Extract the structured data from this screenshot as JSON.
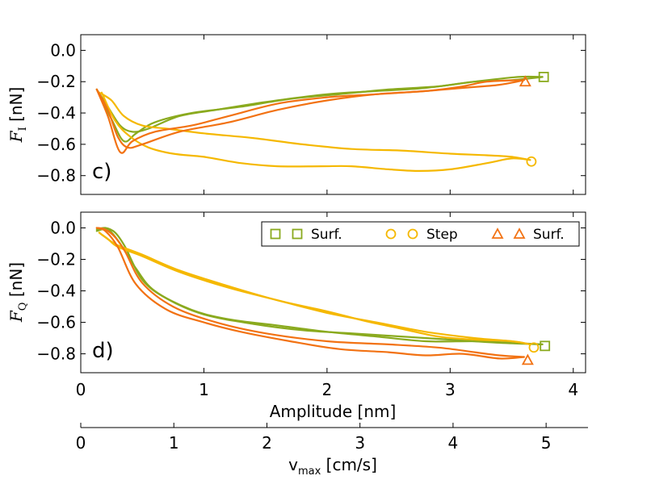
{
  "chart_data": [
    {
      "type": "line",
      "panel_label": "c)",
      "ylabel_main": "F",
      "ylabel_sub": "I",
      "ylabel_unit": "[nN]",
      "ylim": [
        -0.92,
        0.1
      ],
      "yticks": [
        0.0,
        -0.2,
        -0.4,
        -0.6,
        -0.8
      ],
      "ytick_labels": [
        "0.0",
        "−0.2",
        "−0.4",
        "−0.6",
        "−0.8"
      ],
      "xlim": [
        0,
        4.1
      ],
      "series": [
        {
          "name": "Surf. (green) outbound",
          "color": "#8aaa1e",
          "x": [
            0.13,
            0.22,
            0.32,
            0.42,
            0.55,
            0.8,
            1.1,
            1.5,
            2.0,
            2.4,
            2.8,
            3.2,
            3.55,
            3.75
          ],
          "y": [
            -0.25,
            -0.36,
            -0.48,
            -0.52,
            -0.5,
            -0.42,
            -0.38,
            -0.33,
            -0.28,
            -0.26,
            -0.24,
            -0.2,
            -0.17,
            -0.17
          ]
        },
        {
          "name": "Surf. (green) return",
          "color": "#8aaa1e",
          "x": [
            3.75,
            3.5,
            3.2,
            2.9,
            2.5,
            2.1,
            1.7,
            1.3,
            0.9,
            0.6,
            0.45,
            0.35,
            0.25,
            0.13
          ],
          "y": [
            -0.17,
            -0.19,
            -0.2,
            -0.23,
            -0.25,
            -0.28,
            -0.31,
            -0.36,
            -0.4,
            -0.46,
            -0.53,
            -0.58,
            -0.44,
            -0.25
          ]
        },
        {
          "name": "Step (yellow) outbound",
          "color": "#f5b800",
          "x": [
            0.15,
            0.25,
            0.35,
            0.5,
            0.7,
            1.0,
            1.4,
            1.8,
            2.2,
            2.6,
            3.0,
            3.3,
            3.5,
            3.65
          ],
          "y": [
            -0.27,
            -0.32,
            -0.42,
            -0.48,
            -0.5,
            -0.53,
            -0.56,
            -0.6,
            -0.63,
            -0.64,
            -0.66,
            -0.67,
            -0.68,
            -0.7
          ]
        },
        {
          "name": "Step (yellow) return",
          "color": "#f5b800",
          "x": [
            3.65,
            3.5,
            3.3,
            3.0,
            2.75,
            2.5,
            2.2,
            1.95,
            1.6,
            1.3,
            1.0,
            0.75,
            0.55,
            0.4,
            0.28,
            0.17
          ],
          "y": [
            -0.7,
            -0.69,
            -0.72,
            -0.76,
            -0.77,
            -0.76,
            -0.74,
            -0.74,
            -0.74,
            -0.72,
            -0.68,
            -0.66,
            -0.62,
            -0.55,
            -0.45,
            -0.27
          ]
        },
        {
          "name": "Surf. (orange) outbound",
          "color": "#f27213",
          "x": [
            0.13,
            0.22,
            0.3,
            0.38,
            0.5,
            0.8,
            1.2,
            1.6,
            2.0,
            2.4,
            2.8,
            3.1,
            3.3,
            3.6
          ],
          "y": [
            -0.25,
            -0.38,
            -0.55,
            -0.62,
            -0.6,
            -0.52,
            -0.46,
            -0.38,
            -0.32,
            -0.28,
            -0.26,
            -0.23,
            -0.2,
            -0.19
          ]
        },
        {
          "name": "Surf. (orange) return",
          "color": "#f27213",
          "x": [
            3.6,
            3.4,
            3.1,
            2.8,
            2.4,
            2.0,
            1.6,
            1.2,
            0.9,
            0.6,
            0.42,
            0.32,
            0.22,
            0.13
          ],
          "y": [
            -0.19,
            -0.22,
            -0.24,
            -0.26,
            -0.28,
            -0.3,
            -0.34,
            -0.42,
            -0.48,
            -0.52,
            -0.58,
            -0.65,
            -0.42,
            -0.25
          ]
        }
      ],
      "markers": [
        {
          "label": "Surf.",
          "shape": "square",
          "color": "#8aaa1e",
          "x": 3.76,
          "y": -0.17
        },
        {
          "label": "Step",
          "shape": "circle",
          "color": "#f5b800",
          "x": 3.66,
          "y": -0.71
        },
        {
          "label": "Surf.",
          "shape": "triangle",
          "color": "#f27213",
          "x": 3.61,
          "y": -0.2
        }
      ]
    },
    {
      "type": "line",
      "panel_label": "d)",
      "ylabel_main": "F",
      "ylabel_sub": "Q",
      "ylabel_unit": "[nN]",
      "ylim": [
        -0.92,
        0.1
      ],
      "yticks": [
        0.0,
        -0.2,
        -0.4,
        -0.6,
        -0.8
      ],
      "ytick_labels": [
        "0.0",
        "−0.2",
        "−0.4",
        "−0.6",
        "−0.8"
      ],
      "xlim": [
        0,
        4.1
      ],
      "xticks": [
        0,
        1,
        2,
        3,
        4
      ],
      "xtick_labels": [
        "0",
        "1",
        "2",
        "3",
        "4"
      ],
      "xlabel": "Amplitude [nm]",
      "legend": [
        {
          "label": "Surf.",
          "shape": "square",
          "color": "#8aaa1e"
        },
        {
          "label": "Step",
          "shape": "circle",
          "color": "#f5b800"
        },
        {
          "label": "Surf.",
          "shape": "triangle",
          "color": "#f27213"
        }
      ],
      "series": [
        {
          "name": "Surf. (green) outbound",
          "color": "#8aaa1e",
          "x": [
            0.13,
            0.2,
            0.28,
            0.36,
            0.5,
            0.7,
            1.0,
            1.4,
            1.8,
            2.2,
            2.6,
            3.0,
            3.4,
            3.75
          ],
          "y": [
            -0.01,
            0.0,
            -0.03,
            -0.12,
            -0.33,
            -0.45,
            -0.55,
            -0.61,
            -0.65,
            -0.67,
            -0.69,
            -0.71,
            -0.73,
            -0.74
          ]
        },
        {
          "name": "Surf. (green) return",
          "color": "#8aaa1e",
          "x": [
            3.75,
            3.5,
            3.2,
            2.8,
            2.4,
            2.0,
            1.6,
            1.2,
            0.9,
            0.6,
            0.45,
            0.32,
            0.22,
            0.13
          ],
          "y": [
            -0.74,
            -0.73,
            -0.72,
            -0.72,
            -0.69,
            -0.66,
            -0.62,
            -0.58,
            -0.52,
            -0.4,
            -0.26,
            -0.1,
            -0.01,
            -0.02
          ]
        },
        {
          "name": "Step (yellow) outbound",
          "color": "#f5b800",
          "x": [
            0.15,
            0.22,
            0.3,
            0.5,
            0.8,
            1.2,
            1.6,
            2.0,
            2.4,
            2.8,
            3.2,
            3.5,
            3.65
          ],
          "y": [
            -0.03,
            -0.07,
            -0.12,
            -0.18,
            -0.28,
            -0.38,
            -0.46,
            -0.54,
            -0.6,
            -0.66,
            -0.7,
            -0.72,
            -0.74
          ]
        },
        {
          "name": "Step (yellow) return",
          "color": "#f5b800",
          "x": [
            3.65,
            3.5,
            3.2,
            2.9,
            2.6,
            2.3,
            2.0,
            1.6,
            1.2,
            0.8,
            0.5,
            0.3,
            0.2,
            0.15
          ],
          "y": [
            -0.74,
            -0.72,
            -0.71,
            -0.69,
            -0.64,
            -0.59,
            -0.53,
            -0.46,
            -0.37,
            -0.27,
            -0.17,
            -0.11,
            -0.06,
            -0.03
          ]
        },
        {
          "name": "Surf. (orange) outbound",
          "color": "#f27213",
          "x": [
            0.13,
            0.2,
            0.28,
            0.36,
            0.5,
            0.75,
            1.1,
            1.5,
            2.0,
            2.5,
            2.9,
            3.2,
            3.4,
            3.6
          ],
          "y": [
            0.0,
            -0.01,
            -0.06,
            -0.15,
            -0.35,
            -0.5,
            -0.6,
            -0.67,
            -0.72,
            -0.74,
            -0.76,
            -0.79,
            -0.81,
            -0.82
          ]
        },
        {
          "name": "Surf. (orange) return",
          "color": "#f27213",
          "x": [
            3.6,
            3.4,
            3.1,
            2.8,
            2.5,
            2.1,
            1.7,
            1.3,
            1.0,
            0.7,
            0.45,
            0.3,
            0.2,
            0.13
          ],
          "y": [
            -0.82,
            -0.83,
            -0.8,
            -0.81,
            -0.79,
            -0.77,
            -0.72,
            -0.66,
            -0.6,
            -0.52,
            -0.36,
            -0.12,
            -0.02,
            0.0
          ]
        }
      ],
      "markers": [
        {
          "label": "Surf.",
          "shape": "square",
          "color": "#8aaa1e",
          "x": 3.77,
          "y": -0.75
        },
        {
          "label": "Step",
          "shape": "circle",
          "color": "#f5b800",
          "x": 3.68,
          "y": -0.76
        },
        {
          "label": "Surf.",
          "shape": "triangle",
          "color": "#f27213",
          "x": 3.63,
          "y": -0.84
        }
      ]
    },
    {
      "type": "axis",
      "xlabel_main": "v",
      "xlabel_sub": "max",
      "xlabel_unit": "[cm/s]",
      "xlim": [
        0,
        5.45
      ],
      "xticks": [
        0,
        1,
        2,
        3,
        4,
        5
      ],
      "xtick_labels": [
        "0",
        "1",
        "2",
        "3",
        "4",
        "5"
      ]
    }
  ]
}
